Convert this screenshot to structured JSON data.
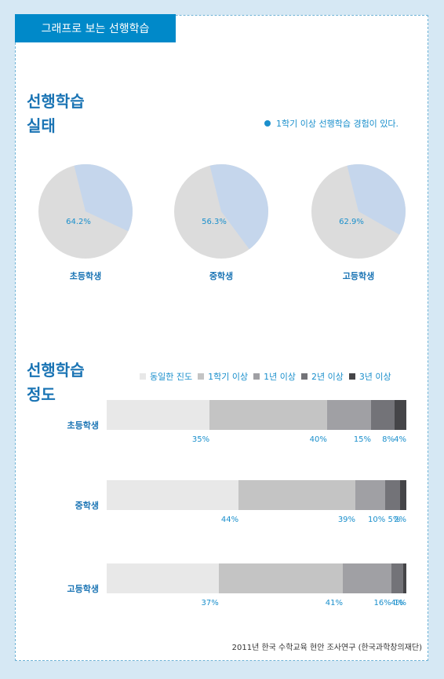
{
  "header": {
    "tab_label": "그래프로 보는 선행학습"
  },
  "section1": {
    "title_line1": "선행학습",
    "title_line2": "실태",
    "legend_label": "1학기 이상 선행학습 경험이 있다."
  },
  "section2": {
    "title_line1": "선행학습",
    "title_line2": "정도"
  },
  "colors": {
    "accent": "#0089c9",
    "pie_yes": "#dcdcdc",
    "pie_no": "#c5d6ec",
    "seg1": "#e8e8e8",
    "seg2": "#c4c4c4",
    "seg3": "#a0a0a4",
    "seg4": "#737378",
    "seg5": "#454548"
  },
  "chart_data": [
    {
      "type": "pie",
      "series_label": "1학기 이상 선행학습 경험이 있다.",
      "slices": [
        {
          "category": "초등학생",
          "value": 64.2,
          "label": "64.2%"
        },
        {
          "category": "중학생",
          "value": 56.3,
          "label": "56.3%"
        },
        {
          "category": "고등학생",
          "value": 62.9,
          "label": "62.9%"
        }
      ]
    },
    {
      "type": "bar",
      "orientation": "horizontal",
      "stacked": true,
      "legend_position": "top-right",
      "legend": [
        "동일한 진도",
        "1학기 이상",
        "1년 이상",
        "2년 이상",
        "3년 이상"
      ],
      "categories": [
        "초등학생",
        "중학생",
        "고등학생"
      ],
      "rows": [
        {
          "values": [
            35,
            40,
            15,
            8,
            4
          ],
          "labels": [
            "35%",
            "40%",
            "15%",
            "8%",
            "4%"
          ]
        },
        {
          "values": [
            44,
            39,
            10,
            5,
            2
          ],
          "labels": [
            "44%",
            "39%",
            "10%",
            "5%",
            "2%"
          ]
        },
        {
          "values": [
            37,
            41,
            16,
            4,
            1
          ],
          "labels": [
            "37%",
            "41%",
            "16%",
            "4%",
            "1%"
          ]
        }
      ]
    }
  ],
  "footer": {
    "source": "2011년 한국 수학교육 현안 조사연구 (한국과학창의재단)"
  }
}
